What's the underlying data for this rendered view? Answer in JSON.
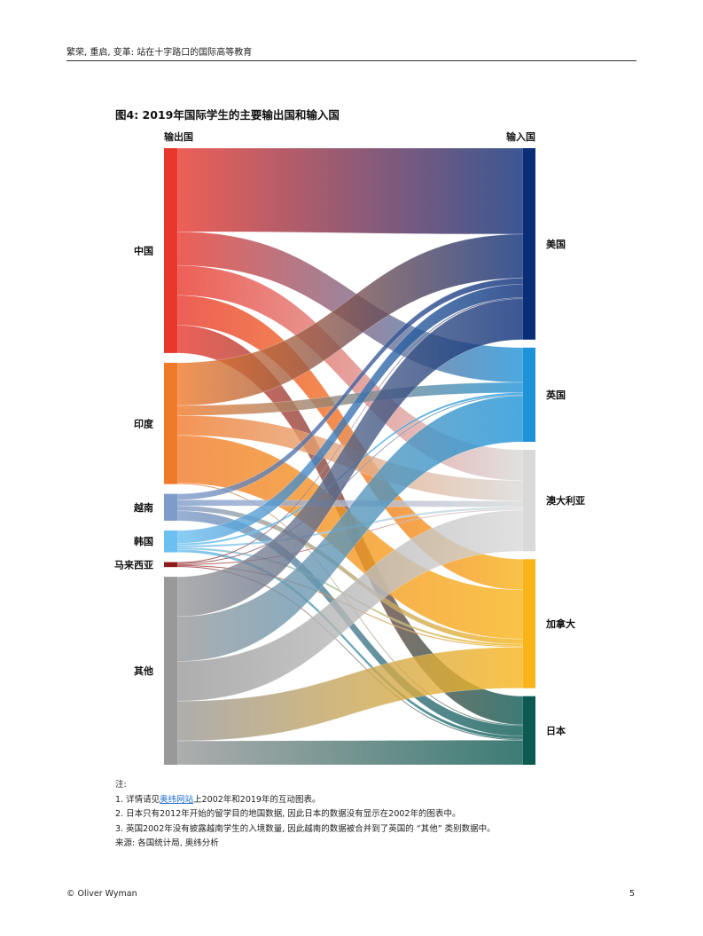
{
  "header": {
    "title": "繁荣, 重启, 变革: 站在十字路口的国际高等教育"
  },
  "figure": {
    "title": "图4: 2019年国际学生的主要输出国和输入国",
    "left_label": "输出国",
    "right_label": "输入国"
  },
  "chart_data": {
    "type": "sankey",
    "title": "图4: 2019年国际学生的主要输出国和输入国",
    "sources": [
      {
        "name": "中国",
        "color": "#e8372c"
      },
      {
        "name": "印度",
        "color": "#f07a2a"
      },
      {
        "name": "越南",
        "color": "#7f9bc9"
      },
      {
        "name": "韩国",
        "color": "#6cc0f0"
      },
      {
        "name": "马来西亚",
        "color": "#8e1b1b"
      },
      {
        "name": "其他",
        "color": "#999999"
      }
    ],
    "targets": [
      {
        "name": "美国",
        "color": "#0a2d78"
      },
      {
        "name": "英国",
        "color": "#1e93d8"
      },
      {
        "name": "澳大利亚",
        "color": "#d9d9d9"
      },
      {
        "name": "加拿大",
        "color": "#f8b419"
      },
      {
        "name": "日本",
        "color": "#0c5a52"
      }
    ],
    "flows": [
      {
        "source": "中国",
        "target": "美国",
        "value": 84
      },
      {
        "source": "中国",
        "target": "英国",
        "value": 34
      },
      {
        "source": "中国",
        "target": "澳大利亚",
        "value": 30
      },
      {
        "source": "中国",
        "target": "加拿大",
        "value": 30
      },
      {
        "source": "中国",
        "target": "日本",
        "value": 28
      },
      {
        "source": "印度",
        "target": "美国",
        "value": 43
      },
      {
        "source": "印度",
        "target": "英国",
        "value": 10
      },
      {
        "source": "印度",
        "target": "澳大利亚",
        "value": 20
      },
      {
        "source": "印度",
        "target": "加拿大",
        "value": 48
      },
      {
        "source": "印度",
        "target": "日本",
        "value": 1
      },
      {
        "source": "越南",
        "target": "美国",
        "value": 6
      },
      {
        "source": "越南",
        "target": "澳大利亚",
        "value": 6
      },
      {
        "source": "越南",
        "target": "加拿大",
        "value": 5
      },
      {
        "source": "越南",
        "target": "日本",
        "value": 10
      },
      {
        "source": "韩国",
        "target": "美国",
        "value": 13
      },
      {
        "source": "韩国",
        "target": "英国",
        "value": 2
      },
      {
        "source": "韩国",
        "target": "澳大利亚",
        "value": 2
      },
      {
        "source": "韩国",
        "target": "加拿大",
        "value": 2
      },
      {
        "source": "韩国",
        "target": "日本",
        "value": 3
      },
      {
        "source": "马来西亚",
        "target": "美国",
        "value": 1
      },
      {
        "source": "马来西亚",
        "target": "英国",
        "value": 1
      },
      {
        "source": "马来西亚",
        "target": "澳大利亚",
        "value": 1
      },
      {
        "source": "马来西亚",
        "target": "加拿大",
        "value": 1
      },
      {
        "source": "马来西亚",
        "target": "日本",
        "value": 1
      },
      {
        "source": "其他",
        "target": "美国",
        "value": 40
      },
      {
        "source": "其他",
        "target": "英国",
        "value": 45
      },
      {
        "source": "其他",
        "target": "澳大利亚",
        "value": 40
      },
      {
        "source": "其他",
        "target": "加拿大",
        "value": 40
      },
      {
        "source": "其他",
        "target": "日本",
        "value": 24
      }
    ]
  },
  "notes": {
    "heading": "注:",
    "line1_pre": "1. 详情请见",
    "line1_link": "奥纬网站",
    "line1_post": "上2002年和2019年的互动图表。",
    "line2": "2. 日本只有2012年开始的留学目的地国数据, 因此日本的数据没有显示在2002年的图表中。",
    "line3": "3. 英国2002年没有披露越南学生的入境数量, 因此越南的数据被合并到了英国的 “其他” 类别数据中。",
    "source": "来源: 各国统计局, 奥纬分析"
  },
  "footer": {
    "copyright": "© Oliver Wyman",
    "page_number": "5"
  }
}
